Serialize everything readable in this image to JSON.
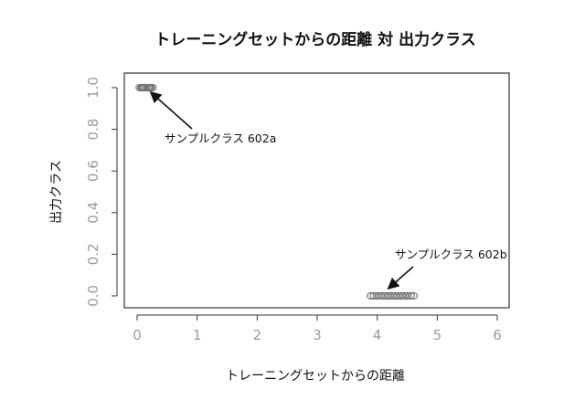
{
  "chart_data": {
    "type": "scatter",
    "title": "トレーニングセットからの距離 対 出力クラス",
    "xlabel": "トレーニングセットからの距離",
    "ylabel": "出力クラス",
    "xlim": [
      0,
      6
    ],
    "ylim": [
      0,
      1
    ],
    "x_ticks": [
      0,
      1,
      2,
      3,
      4,
      5,
      6
    ],
    "y_ticks": [
      0.0,
      0.2,
      0.4,
      0.6,
      0.8,
      1.0
    ],
    "x_tick_labels": [
      "0",
      "1",
      "2",
      "3",
      "4",
      "5",
      "6"
    ],
    "y_tick_labels": [
      "0.0",
      "0.2",
      "0.4",
      "0.6",
      "0.8",
      "1.0"
    ],
    "grid": false,
    "point_color": "#777777",
    "series": [
      {
        "x": [
          0.05,
          0.08,
          0.1,
          0.12,
          0.15,
          0.18,
          0.2,
          0.22,
          0.25,
          0.1,
          0.15,
          0.2
        ],
        "y": [
          1,
          1,
          1,
          1,
          1,
          1,
          1,
          1,
          1,
          1,
          1,
          1
        ]
      },
      {
        "x": [
          3.9,
          3.95,
          4.0,
          4.05,
          4.1,
          4.15,
          4.2,
          4.25,
          4.3,
          4.35,
          4.4,
          4.45,
          4.5,
          4.55,
          4.6,
          4.2,
          4.3,
          4.4
        ],
        "y": [
          0,
          0,
          0,
          0,
          0,
          0,
          0,
          0,
          0,
          0,
          0,
          0,
          0,
          0,
          0,
          0,
          0,
          0
        ]
      }
    ],
    "annotations": [
      {
        "text": "サンプルクラス 602a",
        "x": 0.25,
        "y": 0.96
      },
      {
        "text": "サンプルクラス 602b",
        "x": 4.15,
        "y": 0.04
      }
    ]
  }
}
